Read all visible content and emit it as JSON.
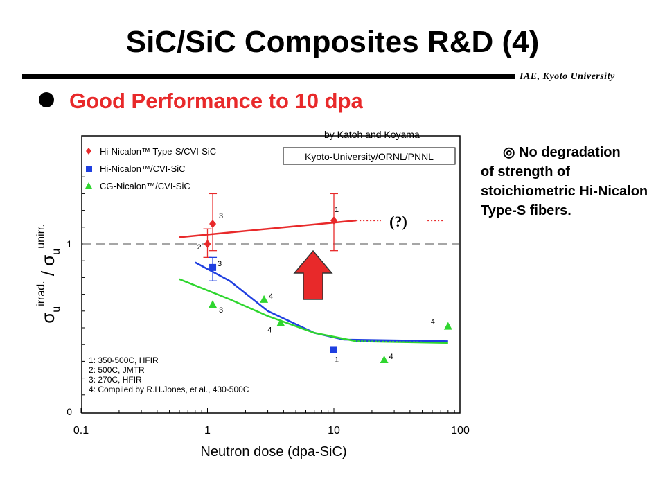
{
  "slide": {
    "title": "SiC/SiC Composites R&D (4)",
    "affiliation": "IAE, Kyoto University",
    "bullet": "Good Performance to 10 dpa",
    "credit": "by Katoh and Koyama",
    "note_line1": "◎ No degradation",
    "note_rest": "of strength of stoichiometric Hi-Nicalon Type-S fibers.",
    "colors": {
      "heading": "#e8292a",
      "arrow": "#e8292a"
    }
  },
  "chart_data": {
    "type": "scatter",
    "xscale": "log",
    "xlim": [
      0.1,
      100
    ],
    "xticks": [
      "0.1",
      "1",
      "10",
      "100"
    ],
    "yticks": [
      "0",
      "1"
    ],
    "xlabel": "Neutron dose (dpa-SiC)",
    "ylabel_main": "σ",
    "ylabel_sub1": "u",
    "ylabel_sup1": "irrad.",
    "ylabel_slash": " / σ",
    "ylabel_sub2": "u",
    "ylabel_sup2": "unirr.",
    "inset_label": "Kyoto-University/ORNL/PNNL",
    "unknown_label": "(?)",
    "legend": [
      "Hi-Nicalon™ Type-S/CVI-SiC",
      "Hi-Nicalon™/CVI-SiC",
      "CG-Nicalon™/CVI-SiC"
    ],
    "conditions": [
      "1: 350-500C, HFIR",
      "2: 500C, JMTR",
      "3: 270C, HFIR",
      "4: Compiled by R.H.Jones, et al., 430-500C"
    ],
    "series": [
      {
        "name": "Hi-Nicalon™ Type-S/CVI-SiC",
        "color": "#e8292a",
        "marker": "diamond",
        "points": [
          {
            "x": 1.0,
            "y": 1.0,
            "label": "2",
            "err": [
              0.92,
              1.09
            ]
          },
          {
            "x": 1.1,
            "y": 1.12,
            "label": "3",
            "err": [
              0.96,
              1.3
            ]
          },
          {
            "x": 10,
            "y": 1.14,
            "label": "1",
            "err": [
              0.96,
              1.3
            ]
          }
        ],
        "trend": [
          [
            0.6,
            1.04
          ],
          [
            15,
            1.14
          ]
        ]
      },
      {
        "name": "Hi-Nicalon™/CVI-SiC",
        "color": "#1f3fe0",
        "marker": "square",
        "points": [
          {
            "x": 1.1,
            "y": 0.86,
            "label": "3",
            "err": [
              0.78,
              0.92
            ]
          },
          {
            "x": 10,
            "y": 0.37,
            "label": "1"
          }
        ],
        "trend": [
          [
            0.8,
            0.89
          ],
          [
            1.5,
            0.78
          ],
          [
            3,
            0.6
          ],
          [
            7,
            0.47
          ],
          [
            12,
            0.43
          ],
          [
            80,
            0.42
          ]
        ]
      },
      {
        "name": "CG-Nicalon™/CVI-SiC",
        "color": "#2fd62f",
        "marker": "triangle",
        "points": [
          {
            "x": 1.1,
            "y": 0.64,
            "label": "3"
          },
          {
            "x": 2.8,
            "y": 0.67,
            "label": "4"
          },
          {
            "x": 3.8,
            "y": 0.53,
            "label": "4"
          },
          {
            "x": 25,
            "y": 0.31,
            "label": "4"
          },
          {
            "x": 80,
            "y": 0.51,
            "label": "4"
          }
        ],
        "trend": [
          [
            0.6,
            0.79
          ],
          [
            1.5,
            0.67
          ],
          [
            3,
            0.57
          ],
          [
            7,
            0.47
          ],
          [
            15,
            0.42
          ],
          [
            80,
            0.41
          ]
        ]
      }
    ]
  }
}
